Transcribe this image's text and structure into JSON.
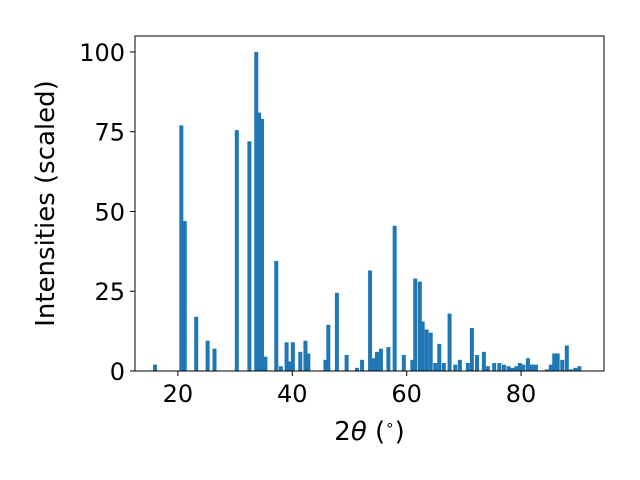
{
  "chart_data": {
    "type": "bar",
    "title": "",
    "xlabel_parts": [
      "2",
      "θ",
      " (",
      "∘",
      ")"
    ],
    "ylabel": "Intensities (scaled)",
    "xlim": [
      12.5,
      94.5
    ],
    "ylim": [
      0,
      105
    ],
    "xticks": [
      20,
      40,
      60,
      80
    ],
    "yticks": [
      0,
      25,
      50,
      75,
      100
    ],
    "grid": false,
    "bar_color": "#1f77b4",
    "bar_width": 0.7,
    "x": [
      16.0,
      20.6,
      21.2,
      23.2,
      25.2,
      26.4,
      30.3,
      32.5,
      33.7,
      34.2,
      34.7,
      35.3,
      37.2,
      38.0,
      39.0,
      39.6,
      40.1,
      41.4,
      42.3,
      42.8,
      45.8,
      46.3,
      47.8,
      49.5,
      51.3,
      52.2,
      53.6,
      54.2,
      54.8,
      55.5,
      56.8,
      57.9,
      59.5,
      61.0,
      61.5,
      62.3,
      62.8,
      63.5,
      64.2,
      65.0,
      65.7,
      66.5,
      67.5,
      68.5,
      69.3,
      70.7,
      71.4,
      72.3,
      73.5,
      74.2,
      75.3,
      76.2,
      77.0,
      77.8,
      78.5,
      79.2,
      79.8,
      80.4,
      81.2,
      81.9,
      82.6,
      84.5,
      85.2,
      85.8,
      86.4,
      87.2,
      88.0,
      88.7,
      89.5,
      90.2
    ],
    "values": [
      2.0,
      77.0,
      47.0,
      17.0,
      9.5,
      7.0,
      75.5,
      72.0,
      100.0,
      81.0,
      79.0,
      4.5,
      34.5,
      1.5,
      9.0,
      3.0,
      9.0,
      6.0,
      9.5,
      5.5,
      3.5,
      14.5,
      24.5,
      5.0,
      1.0,
      3.5,
      31.5,
      4.0,
      6.0,
      7.0,
      7.5,
      45.5,
      5.0,
      3.5,
      29.0,
      28.0,
      15.5,
      13.0,
      12.0,
      2.5,
      8.5,
      2.5,
      18.0,
      2.0,
      3.5,
      2.5,
      13.5,
      5.0,
      6.0,
      1.5,
      2.5,
      2.5,
      2.0,
      1.5,
      1.0,
      1.5,
      2.5,
      2.0,
      4.0,
      2.0,
      2.0,
      0.5,
      2.0,
      5.5,
      5.5,
      3.5,
      8.0,
      0.5,
      1.0,
      1.5
    ]
  }
}
